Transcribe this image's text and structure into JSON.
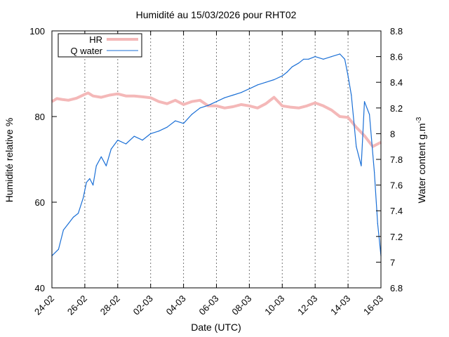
{
  "chart_data": {
    "type": "line",
    "title": "Humidité au 15/03/2026 pour RHT02",
    "xlabel": "Date (UTC)",
    "ylabel": "Humidité relative %",
    "y2label_base": "Water content g.m",
    "y2label_sup": "-3",
    "x_tick_labels": [
      "24-02",
      "26-02",
      "28-02",
      "02-03",
      "04-03",
      "06-03",
      "08-03",
      "10-03",
      "12-03",
      "14-03",
      "16-03"
    ],
    "x_range_days": [
      0,
      20
    ],
    "ylim": [
      40,
      100
    ],
    "y_ticks": [
      40,
      60,
      80,
      100
    ],
    "y2lim": [
      6.8,
      8.8
    ],
    "y2_ticks": [
      6.8,
      7,
      7.2,
      7.4,
      7.6,
      7.8,
      8,
      8.2,
      8.4,
      8.6,
      8.8
    ],
    "grid": "vertical dashed",
    "legend_position": "top-left",
    "colors": {
      "HR": "#f4b8b8",
      "Q water": "#1a6fd6"
    },
    "series": [
      {
        "name": "HR",
        "axis": "left",
        "x": [
          0,
          0.3,
          0.6,
          1,
          1.5,
          2,
          2.2,
          2.5,
          3,
          3.5,
          4,
          4.5,
          5,
          5.5,
          6,
          6.5,
          7,
          7.5,
          8,
          8.5,
          9,
          9.5,
          10,
          10.5,
          11,
          11.5,
          12,
          12.5,
          13,
          13.5,
          14,
          14.5,
          15,
          15.5,
          16,
          16.5,
          17,
          17.5,
          18,
          18.5,
          19,
          19.5,
          20
        ],
        "values": [
          83.5,
          84.2,
          84,
          83.8,
          84.3,
          85.2,
          85.5,
          84.8,
          84.5,
          85,
          85.3,
          84.8,
          84.8,
          84.6,
          84.4,
          83.5,
          83,
          83.8,
          82.8,
          83.5,
          83.8,
          82.5,
          82.5,
          82,
          82.3,
          82.8,
          82.5,
          82,
          83,
          84.5,
          82.5,
          82.2,
          82,
          82.5,
          83.2,
          82.5,
          81.5,
          80,
          79.8,
          77.5,
          75.5,
          73,
          74
        ]
      },
      {
        "name": "Q water",
        "axis": "right",
        "x": [
          0,
          0.4,
          0.7,
          1,
          1.3,
          1.6,
          1.9,
          2.1,
          2.3,
          2.5,
          2.7,
          3,
          3.3,
          3.6,
          4,
          4.5,
          5,
          5.5,
          6,
          6.5,
          7,
          7.5,
          8,
          8.5,
          9,
          9.5,
          10,
          10.5,
          11,
          11.5,
          12,
          12.5,
          13,
          13.5,
          14,
          14.3,
          14.6,
          15,
          15.3,
          15.6,
          16,
          16.5,
          17,
          17.5,
          17.8,
          18,
          18.2,
          18.5,
          18.8,
          19,
          19.3,
          19.6,
          19.8,
          20
        ],
        "values": [
          7.05,
          7.1,
          7.25,
          7.3,
          7.35,
          7.38,
          7.5,
          7.62,
          7.65,
          7.6,
          7.75,
          7.82,
          7.75,
          7.88,
          7.95,
          7.92,
          7.98,
          7.95,
          8.0,
          8.02,
          8.05,
          8.1,
          8.08,
          8.15,
          8.2,
          8.22,
          8.25,
          8.28,
          8.3,
          8.32,
          8.35,
          8.38,
          8.4,
          8.42,
          8.45,
          8.48,
          8.52,
          8.55,
          8.58,
          8.58,
          8.6,
          8.58,
          8.6,
          8.62,
          8.58,
          8.45,
          8.3,
          7.9,
          7.75,
          8.25,
          8.15,
          7.7,
          7.3,
          7.05
        ]
      }
    ]
  }
}
